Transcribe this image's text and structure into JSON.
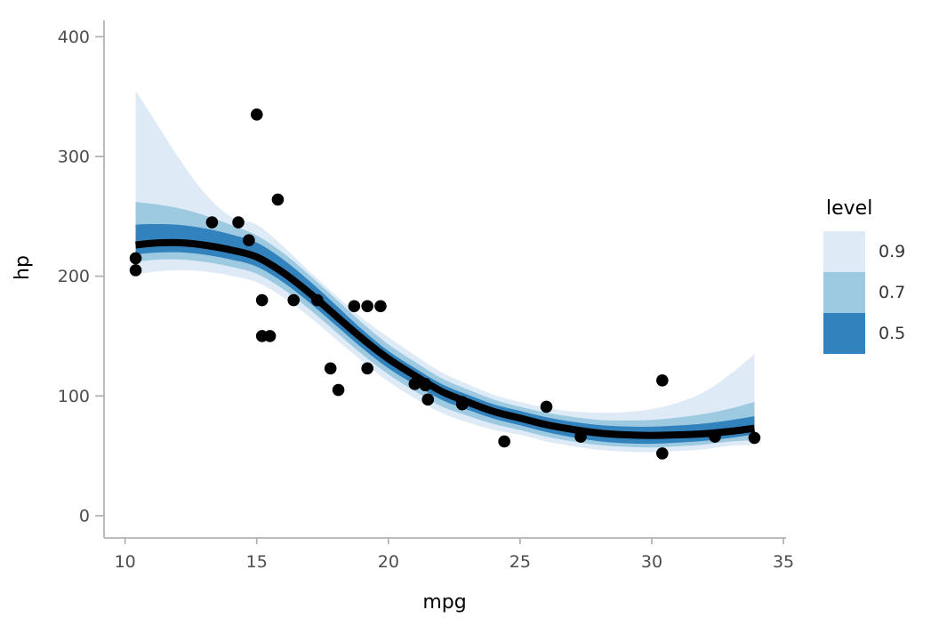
{
  "figure": {
    "background": "#ffffff"
  },
  "chart_data": {
    "type": "scatter",
    "subtype": "scatter-with-lineribbon-smooth",
    "title": "",
    "xlabel": "mpg",
    "ylabel": "hp",
    "x_ticks": [
      10,
      15,
      20,
      25,
      30,
      35
    ],
    "y_ticks": [
      0,
      100,
      200,
      300,
      400
    ],
    "xlim": [
      9.2,
      35.1
    ],
    "ylim": [
      -18.6,
      421
    ],
    "grid": false,
    "legend": {
      "title": "level",
      "position": "right",
      "entries": [
        {
          "label": "0.9",
          "color": "#deebf7"
        },
        {
          "label": "0.7",
          "color": "#9ecae1"
        },
        {
          "label": "0.5",
          "color": "#3182bd"
        }
      ]
    },
    "points": [
      [
        10.4,
        205
      ],
      [
        10.4,
        215
      ],
      [
        13.3,
        245
      ],
      [
        14.3,
        245
      ],
      [
        14.7,
        230
      ],
      [
        15.0,
        335
      ],
      [
        15.2,
        150
      ],
      [
        15.2,
        180
      ],
      [
        15.5,
        150
      ],
      [
        15.8,
        264
      ],
      [
        16.4,
        180
      ],
      [
        17.3,
        180
      ],
      [
        17.8,
        123
      ],
      [
        18.1,
        105
      ],
      [
        18.7,
        175
      ],
      [
        19.2,
        123
      ],
      [
        19.2,
        175
      ],
      [
        19.7,
        175
      ],
      [
        21.0,
        110
      ],
      [
        21.0,
        110
      ],
      [
        21.4,
        109
      ],
      [
        21.4,
        110
      ],
      [
        21.5,
        97
      ],
      [
        22.8,
        93
      ],
      [
        22.8,
        95
      ],
      [
        24.4,
        62
      ],
      [
        26.0,
        91
      ],
      [
        27.3,
        66
      ],
      [
        30.4,
        52
      ],
      [
        30.4,
        113
      ],
      [
        32.4,
        66
      ],
      [
        33.9,
        65
      ]
    ],
    "smooth": {
      "x": [
        10.4,
        11,
        12,
        13,
        14,
        15,
        16,
        17,
        18,
        19,
        20,
        21,
        22,
        23,
        24,
        25,
        26,
        27,
        28,
        29,
        30,
        31,
        32,
        33,
        33.9
      ],
      "median": [
        226,
        227.5,
        228,
        226,
        222,
        216,
        203,
        186,
        167,
        148,
        131,
        117,
        104,
        95,
        87,
        81.5,
        76,
        72,
        69,
        67.5,
        67,
        67.5,
        68.5,
        70.5,
        73
      ],
      "bands": [
        {
          "level": "0.9",
          "color": "#deebf7",
          "upper": [
            355,
            334.5,
            300,
            270,
            250,
            243,
            225,
            204,
            184,
            165,
            149,
            134,
            120,
            110,
            101,
            95,
            90,
            87,
            86,
            86.5,
            89,
            94.5,
            103.5,
            118.5,
            135
          ],
          "lower": [
            201,
            203.5,
            205,
            204,
            200.5,
            195,
            182.5,
            166,
            147.5,
            129,
            112,
            98,
            86,
            78,
            71.5,
            67.5,
            62,
            58,
            55,
            53.5,
            53,
            54,
            55.5,
            58.5,
            59
          ]
        },
        {
          "level": "0.7",
          "color": "#9ecae1",
          "upper": [
            262,
            260.5,
            257,
            251,
            243,
            234,
            219.5,
            201,
            181,
            161,
            143,
            128.5,
            115,
            105.5,
            97,
            91,
            86,
            82.5,
            80,
            79.5,
            80,
            82,
            85,
            89.5,
            95
          ],
          "lower": [
            212,
            213.5,
            214,
            212,
            208,
            202,
            189.2,
            172.4,
            153.6,
            134.8,
            118,
            104,
            91.5,
            83.5,
            76.5,
            71.5,
            66,
            62,
            59,
            57.5,
            57,
            58,
            59.5,
            62,
            63
          ]
        },
        {
          "level": "0.5",
          "color": "#3182bd",
          "upper": [
            243,
            243.5,
            243,
            240,
            235,
            228,
            214,
            196,
            176,
            155.5,
            137.5,
            123.3,
            110.2,
            101.1,
            93,
            87.5,
            82.2,
            78.4,
            75.7,
            74.5,
            74.3,
            75.3,
            77,
            79.8,
            83
          ],
          "lower": [
            218,
            219.5,
            220,
            218,
            214,
            208,
            195,
            178,
            159,
            140,
            123,
            109.5,
            97,
            88.5,
            81,
            75.5,
            69.8,
            65.5,
            62.2,
            60.5,
            60,
            61,
            62.5,
            65,
            68
          ]
        }
      ]
    },
    "styles": {
      "point_color": "#000000",
      "point_radius": 6.8,
      "line_color": "#000000",
      "line_width": 8,
      "axis_line_color": "#b3b3b3",
      "tick_label_color": "#4d4d4d"
    }
  }
}
